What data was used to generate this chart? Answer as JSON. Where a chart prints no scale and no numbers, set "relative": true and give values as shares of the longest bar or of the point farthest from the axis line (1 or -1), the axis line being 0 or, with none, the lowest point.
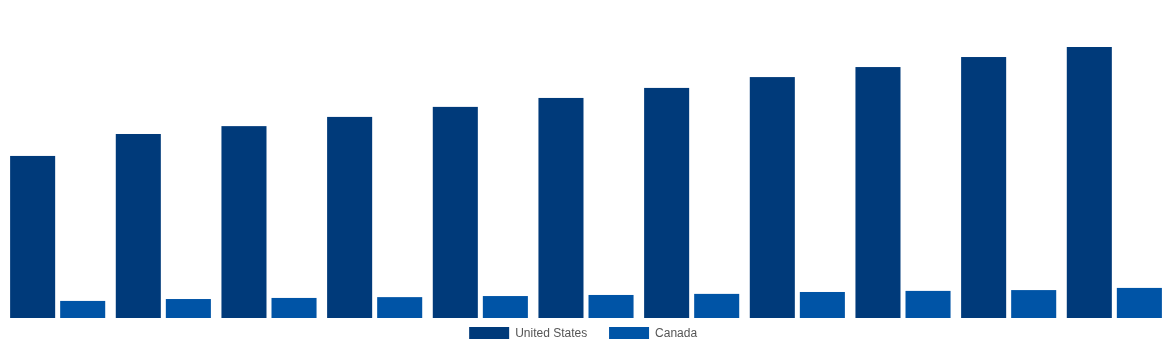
{
  "chart_data": {
    "type": "bar",
    "relative": true,
    "categories": [
      null,
      null,
      null,
      null,
      null,
      null,
      null,
      null,
      null,
      null,
      null
    ],
    "series": [
      {
        "name": "United States",
        "color": "#003a7a",
        "values": [
          0.598,
          0.679,
          0.708,
          0.742,
          0.779,
          0.812,
          0.849,
          0.889,
          0.926,
          0.963,
          1
        ]
      },
      {
        "name": "Canada",
        "color": "#0054a6",
        "values": [
          0.063,
          0.07,
          0.074,
          0.077,
          0.081,
          0.085,
          0.089,
          0.096,
          0.1,
          0.103,
          0.111
        ]
      }
    ],
    "legend": "bottom"
  }
}
